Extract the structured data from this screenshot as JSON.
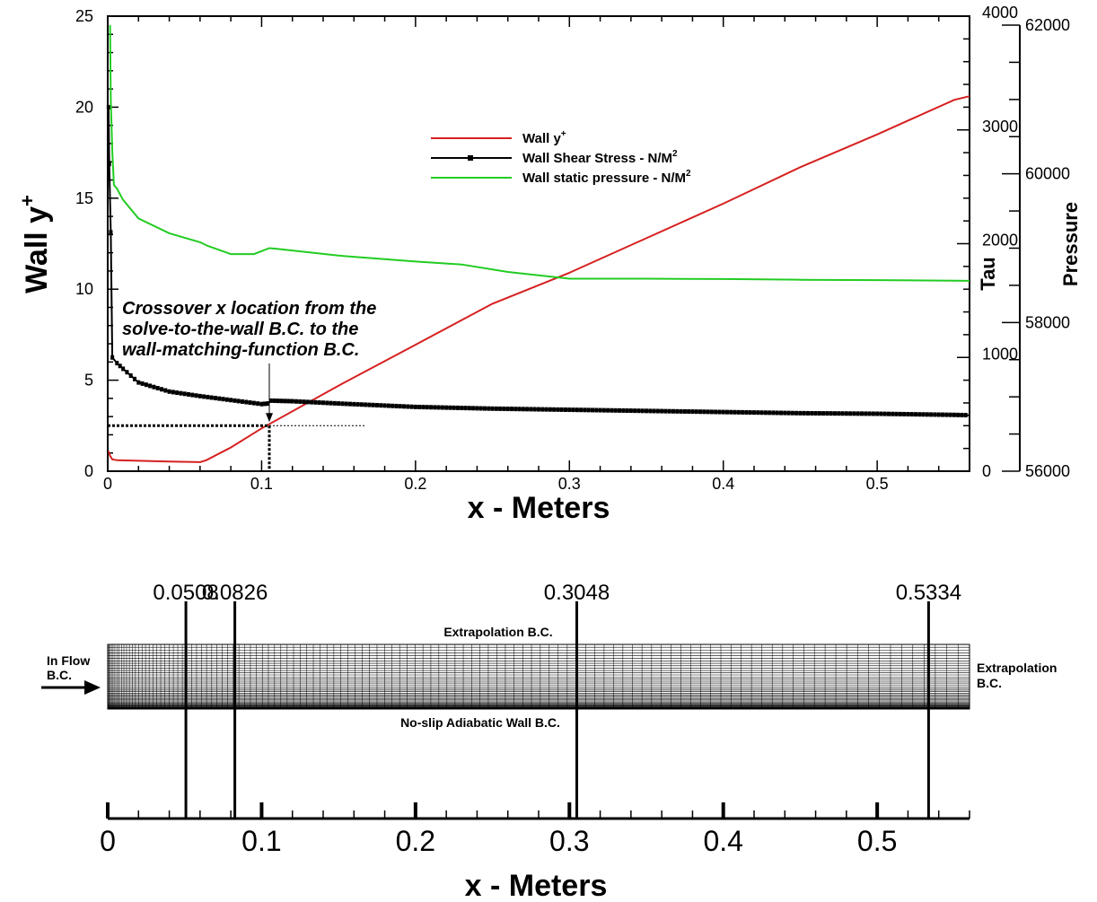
{
  "chart_data": [
    {
      "type": "line",
      "x_axis": {
        "label": "x - Meters",
        "range": [
          0,
          0.56
        ],
        "ticks": [
          "0",
          "0.1",
          "0.2",
          "0.3",
          "0.4",
          "0.5"
        ]
      },
      "y_axes": {
        "left": {
          "label": "Wall y",
          "label_sup": "+",
          "range": [
            0,
            25
          ],
          "ticks": [
            "0",
            "5",
            "10",
            "15",
            "20",
            "25"
          ]
        },
        "right1": {
          "label": "Tau",
          "range": [
            0,
            4000
          ],
          "ticks": [
            "0",
            "1000",
            "2000",
            "3000",
            "4000"
          ]
        },
        "right2": {
          "label": "Pressure",
          "range": [
            56000,
            62000
          ],
          "ticks": [
            "56000",
            "58000",
            "60000",
            "62000"
          ]
        }
      },
      "legend": {
        "position": "upper-middle",
        "entries": [
          {
            "text": "Wall y",
            "sup": "+",
            "color": "#d62020"
          },
          {
            "text": "Wall Shear Stress - N/M",
            "sup": "2",
            "color": "#000000"
          },
          {
            "text": "Wall static pressure - N/M",
            "sup": "2",
            "color": "#22cc22"
          }
        ]
      },
      "annotation": {
        "lines": [
          "Crossover x location from the",
          "solve-to-the-wall B.C. to the",
          "wall-matching-function B.C."
        ],
        "crossover_x": 0.105,
        "crossover_y": 2.5
      },
      "series": [
        {
          "name": "Wall y",
          "axis": "left",
          "color": "#d62020",
          "x": [
            0.0005,
            0.0015,
            0.003,
            0.006,
            0.02,
            0.04,
            0.06,
            0.064,
            0.08,
            0.1,
            0.15,
            0.2,
            0.25,
            0.3,
            0.35,
            0.4,
            0.45,
            0.5,
            0.55,
            0.56
          ],
          "y": [
            1.1,
            0.85,
            0.65,
            0.6,
            0.57,
            0.53,
            0.5,
            0.6,
            1.3,
            2.35,
            4.7,
            6.95,
            9.2,
            10.9,
            12.8,
            14.7,
            16.7,
            18.5,
            20.4,
            20.6
          ]
        },
        {
          "name": "Wall Shear Stress - N/M2",
          "axis": "right1",
          "color": "#000000",
          "x": [
            0.0005,
            0.001,
            0.002,
            0.003,
            0.006,
            0.01,
            0.02,
            0.04,
            0.06,
            0.08,
            0.1,
            0.104,
            0.106,
            0.12,
            0.15,
            0.2,
            0.25,
            0.3,
            0.35,
            0.4,
            0.45,
            0.5,
            0.55,
            0.56
          ],
          "y": [
            3200,
            2700,
            2100,
            1000,
            950,
            900,
            780,
            700,
            660,
            625,
            590,
            595,
            620,
            615,
            595,
            565,
            550,
            540,
            530,
            520,
            510,
            505,
            495,
            492
          ]
        },
        {
          "name": "Wall static pressure - N/M2",
          "axis": "right2",
          "color": "#22cc22",
          "x": [
            0.0015,
            0.002,
            0.003,
            0.004,
            0.006,
            0.01,
            0.02,
            0.04,
            0.06,
            0.065,
            0.08,
            0.095,
            0.105,
            0.11,
            0.15,
            0.2,
            0.23,
            0.26,
            0.3,
            0.35,
            0.4,
            0.45,
            0.5,
            0.56
          ],
          "y": [
            62000,
            61000,
            60300,
            59850,
            59800,
            59650,
            59400,
            59200,
            59080,
            59030,
            58920,
            58920,
            59000,
            58990,
            58900,
            58820,
            58780,
            58680,
            58590,
            58590,
            58585,
            58575,
            58570,
            58560
          ]
        }
      ]
    },
    {
      "type": "diagram",
      "x_axis": {
        "label": "x - Meters",
        "range": [
          0,
          0.56
        ],
        "ticks": [
          "0",
          "0.1",
          "0.2",
          "0.3",
          "0.4",
          "0.5"
        ]
      },
      "markers": [
        {
          "x": 0.0508,
          "label": "0.0508"
        },
        {
          "x": 0.0826,
          "label": "0.0826"
        },
        {
          "x": 0.3048,
          "label": "0.3048"
        },
        {
          "x": 0.5334,
          "label": "0.5334"
        }
      ],
      "labels": {
        "top": "Extrapolation B.C.",
        "bottom": "No-slip Adiabatic Wall B.C.",
        "inflow_line1": "In Flow",
        "inflow_line2": "B.C.",
        "outflow_line1": "Extrapolation",
        "outflow_line2": "B.C."
      }
    }
  ]
}
